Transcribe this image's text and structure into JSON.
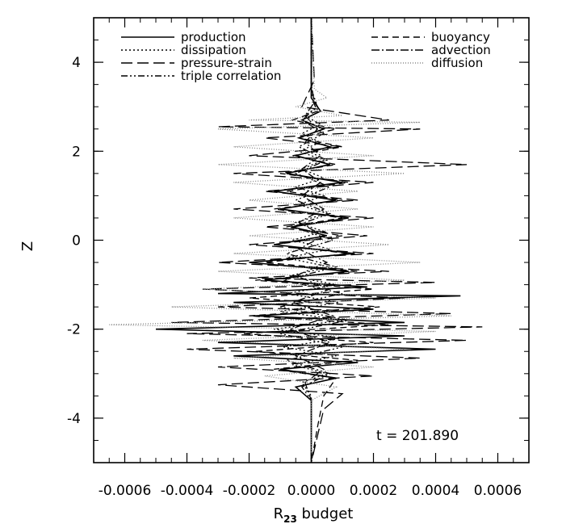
{
  "chart_data": {
    "type": "line",
    "title": "",
    "xlabel": "R",
    "xlabel_sub": "23",
    "xlabel_suffix": " budget",
    "ylabel": "Z",
    "xlim": [
      -0.0007,
      0.0007
    ],
    "ylim": [
      -5,
      5
    ],
    "x_ticks": [
      -0.0006,
      -0.0004,
      -0.0002,
      0.0,
      0.0002,
      0.0004,
      0.0006
    ],
    "x_tick_labels": [
      "-0.0006",
      "-0.0004",
      "-0.0002",
      "0.0000",
      "0.0002",
      "0.0004",
      "0.0006"
    ],
    "y_ticks": [
      -4,
      -2,
      0,
      2,
      4
    ],
    "y_tick_labels": [
      "-4",
      "-2",
      "0",
      "2",
      "4"
    ],
    "grid": false,
    "annotation": "t = 201.890",
    "legend_placement": "top",
    "legend_left": [
      "production",
      "dissipation",
      "pressure-strain",
      "triple correlation"
    ],
    "legend_right": [
      "buoyancy",
      "advection",
      "diffusion"
    ],
    "series": [
      {
        "name": "production",
        "dash": "solid",
        "color": "#000000",
        "points": [
          [
            0.0,
            5
          ],
          [
            0.0,
            3.2
          ],
          [
            3e-05,
            2.9
          ],
          [
            -3e-05,
            2.7
          ],
          [
            4e-05,
            2.5
          ],
          [
            -4e-05,
            2.3
          ],
          [
            6e-05,
            2.1
          ],
          [
            -5e-05,
            1.9
          ],
          [
            6e-05,
            1.7
          ],
          [
            -8e-05,
            1.5
          ],
          [
            0.0001,
            1.3
          ],
          [
            -0.00012,
            1.1
          ],
          [
            8e-05,
            0.9
          ],
          [
            -0.0001,
            0.7
          ],
          [
            0.00012,
            0.5
          ],
          [
            -6e-05,
            0.3
          ],
          [
            5e-05,
            0.1
          ],
          [
            -0.00012,
            -0.1
          ],
          [
            0.00014,
            -0.3
          ],
          [
            -0.0002,
            -0.5
          ],
          [
            0.00012,
            -0.7
          ],
          [
            -0.00015,
            -0.9
          ],
          [
            0.00018,
            -1.05
          ],
          [
            -0.0003,
            -1.2
          ],
          [
            0.00048,
            -1.25
          ],
          [
            -0.00025,
            -1.4
          ],
          [
            0.0002,
            -1.55
          ],
          [
            -0.00018,
            -1.7
          ],
          [
            0.0003,
            -1.85
          ],
          [
            -0.0005,
            -2.0
          ],
          [
            0.0003,
            -2.15
          ],
          [
            -0.0003,
            -2.3
          ],
          [
            0.0004,
            -2.45
          ],
          [
            -0.00025,
            -2.6
          ],
          [
            0.00015,
            -2.75
          ],
          [
            -0.0001,
            -2.9
          ],
          [
            8e-05,
            -3.1
          ],
          [
            -5e-05,
            -3.3
          ],
          [
            0.0,
            -3.6
          ],
          [
            0.0,
            -5
          ]
        ]
      },
      {
        "name": "dissipation",
        "dash": "2,3",
        "color": "#000000",
        "points": [
          [
            0.0,
            5
          ],
          [
            0.0,
            3.4
          ],
          [
            2e-05,
            3.0
          ],
          [
            -2e-05,
            2.8
          ],
          [
            3e-05,
            2.6
          ],
          [
            -3e-05,
            2.4
          ],
          [
            3e-05,
            2.2
          ],
          [
            -4e-05,
            2.0
          ],
          [
            4e-05,
            1.8
          ],
          [
            -3e-05,
            1.6
          ],
          [
            4e-05,
            1.4
          ],
          [
            -5e-05,
            1.2
          ],
          [
            4e-05,
            1.0
          ],
          [
            -4e-05,
            0.8
          ],
          [
            5e-05,
            0.6
          ],
          [
            -5e-05,
            0.4
          ],
          [
            4e-05,
            0.2
          ],
          [
            -6e-05,
            0.0
          ],
          [
            6e-05,
            -0.2
          ],
          [
            -8e-05,
            -0.4
          ],
          [
            6e-05,
            -0.6
          ],
          [
            -7e-05,
            -0.8
          ],
          [
            8e-05,
            -1.0
          ],
          [
            -8e-05,
            -1.2
          ],
          [
            9e-05,
            -1.4
          ],
          [
            -0.0001,
            -1.6
          ],
          [
            0.0001,
            -1.8
          ],
          [
            -0.00012,
            -2.0
          ],
          [
            0.0001,
            -2.2
          ],
          [
            -9e-05,
            -2.4
          ],
          [
            8e-05,
            -2.6
          ],
          [
            -6e-05,
            -2.8
          ],
          [
            5e-05,
            -3.0
          ],
          [
            -3e-05,
            -3.2
          ],
          [
            0.0,
            -3.5
          ],
          [
            0.0,
            -5
          ]
        ]
      },
      {
        "name": "pressure-strain",
        "dash": "14,6",
        "color": "#000000",
        "points": [
          [
            0.0,
            5
          ],
          [
            1e-05,
            3.6
          ],
          [
            -3e-05,
            3.0
          ],
          [
            0.00025,
            2.7
          ],
          [
            -0.0003,
            2.55
          ],
          [
            0.00035,
            2.5
          ],
          [
            -0.00015,
            2.3
          ],
          [
            0.0001,
            2.1
          ],
          [
            -0.0002,
            1.9
          ],
          [
            0.0005,
            1.7
          ],
          [
            -0.00025,
            1.5
          ],
          [
            0.0002,
            1.3
          ],
          [
            -0.00015,
            1.1
          ],
          [
            0.00015,
            0.9
          ],
          [
            -0.00025,
            0.7
          ],
          [
            0.0002,
            0.5
          ],
          [
            -0.00015,
            0.3
          ],
          [
            0.00018,
            0.1
          ],
          [
            -0.0002,
            -0.1
          ],
          [
            0.0002,
            -0.3
          ],
          [
            -0.0003,
            -0.5
          ],
          [
            0.00025,
            -0.7
          ],
          [
            -0.0002,
            -0.85
          ],
          [
            0.0004,
            -0.95
          ],
          [
            -0.00035,
            -1.1
          ],
          [
            0.0003,
            -1.3
          ],
          [
            -0.0003,
            -1.5
          ],
          [
            0.00045,
            -1.65
          ],
          [
            -0.00045,
            -1.85
          ],
          [
            0.00055,
            -1.95
          ],
          [
            -0.0004,
            -2.1
          ],
          [
            0.0005,
            -2.25
          ],
          [
            -0.0004,
            -2.45
          ],
          [
            0.00035,
            -2.65
          ],
          [
            -0.0003,
            -2.85
          ],
          [
            0.0002,
            -3.05
          ],
          [
            -0.0003,
            -3.25
          ],
          [
            0.0001,
            -3.45
          ],
          [
            4e-05,
            -3.8
          ],
          [
            2e-05,
            -4.4
          ],
          [
            0.0,
            -5
          ]
        ]
      },
      {
        "name": "triple correlation",
        "dash": "8,3,2,3,2,3",
        "color": "#000000",
        "points": [
          [
            0.0,
            5
          ],
          [
            0.0,
            3.3
          ],
          [
            2e-05,
            3.0
          ],
          [
            -3e-05,
            2.7
          ],
          [
            4e-05,
            2.4
          ],
          [
            -4e-05,
            2.1
          ],
          [
            5e-05,
            1.8
          ],
          [
            -5e-05,
            1.5
          ],
          [
            6e-05,
            1.2
          ],
          [
            -5e-05,
            0.9
          ],
          [
            6e-05,
            0.6
          ],
          [
            -6e-05,
            0.3
          ],
          [
            7e-05,
            0.0
          ],
          [
            -8e-05,
            -0.3
          ],
          [
            8e-05,
            -0.6
          ],
          [
            -9e-05,
            -0.9
          ],
          [
            0.0001,
            -1.2
          ],
          [
            -0.0001,
            -1.5
          ],
          [
            0.00012,
            -1.8
          ],
          [
            -0.0001,
            -2.1
          ],
          [
            0.0001,
            -2.4
          ],
          [
            -8e-05,
            -2.7
          ],
          [
            6e-05,
            -3.0
          ],
          [
            -3e-05,
            -3.3
          ],
          [
            0.0,
            -3.6
          ],
          [
            0.0,
            -5
          ]
        ]
      },
      {
        "name": "buoyancy",
        "dash": "8,5",
        "color": "#000000",
        "points": [
          [
            0.0,
            5
          ],
          [
            0.0,
            3.2
          ],
          [
            2e-05,
            2.9
          ],
          [
            -6e-05,
            2.7
          ],
          [
            8e-05,
            2.5
          ],
          [
            -4e-05,
            2.3
          ],
          [
            0.0001,
            2.1
          ],
          [
            -6e-05,
            1.9
          ],
          [
            8e-05,
            1.7
          ],
          [
            -0.0001,
            1.5
          ],
          [
            0.00012,
            1.3
          ],
          [
            -8e-05,
            1.1
          ],
          [
            0.0001,
            0.9
          ],
          [
            -0.00012,
            0.7
          ],
          [
            0.0001,
            0.5
          ],
          [
            -8e-05,
            0.3
          ],
          [
            0.0001,
            0.1
          ],
          [
            -0.00012,
            -0.1
          ],
          [
            0.00012,
            -0.3
          ],
          [
            -0.00015,
            -0.5
          ],
          [
            0.00015,
            -0.7
          ],
          [
            -0.00018,
            -0.9
          ],
          [
            0.0002,
            -1.1
          ],
          [
            -0.0002,
            -1.3
          ],
          [
            0.00022,
            -1.5
          ],
          [
            -0.0002,
            -1.7
          ],
          [
            0.00025,
            -1.9
          ],
          [
            -0.00022,
            -2.1
          ],
          [
            0.0002,
            -2.3
          ],
          [
            -0.00018,
            -2.5
          ],
          [
            0.00015,
            -2.7
          ],
          [
            -0.00012,
            -2.9
          ],
          [
            8e-05,
            -3.1
          ],
          [
            4e-05,
            -3.5
          ],
          [
            2e-05,
            -4.2
          ],
          [
            0.0,
            -5
          ]
        ]
      },
      {
        "name": "advection",
        "dash": "10,3,2,3",
        "color": "#000000",
        "points": [
          [
            0.0,
            5
          ],
          [
            0.0,
            3.5
          ],
          [
            1e-05,
            3.1
          ],
          [
            -2e-05,
            2.8
          ],
          [
            2e-05,
            2.5
          ],
          [
            -2e-05,
            2.2
          ],
          [
            3e-05,
            1.9
          ],
          [
            -3e-05,
            1.6
          ],
          [
            3e-05,
            1.3
          ],
          [
            -3e-05,
            1.0
          ],
          [
            4e-05,
            0.7
          ],
          [
            -4e-05,
            0.4
          ],
          [
            4e-05,
            0.1
          ],
          [
            -4e-05,
            -0.2
          ],
          [
            5e-05,
            -0.5
          ],
          [
            -5e-05,
            -0.8
          ],
          [
            6e-05,
            -1.1
          ],
          [
            -6e-05,
            -1.4
          ],
          [
            7e-05,
            -1.7
          ],
          [
            -7e-05,
            -2.0
          ],
          [
            6e-05,
            -2.3
          ],
          [
            -5e-05,
            -2.6
          ],
          [
            4e-05,
            -2.9
          ],
          [
            -2e-05,
            -3.2
          ],
          [
            0.0,
            -3.6
          ],
          [
            0.0,
            -5
          ]
        ]
      },
      {
        "name": "diffusion",
        "dash": "1,2",
        "color": "#888888",
        "points": [
          [
            0.0,
            5
          ],
          [
            1e-05,
            3.4
          ],
          [
            5e-05,
            3.2
          ],
          [
            -5e-05,
            3.0
          ],
          [
            0.0001,
            2.8
          ],
          [
            -0.0002,
            2.7
          ],
          [
            0.00035,
            2.65
          ],
          [
            -0.0003,
            2.5
          ],
          [
            0.0002,
            2.3
          ],
          [
            -0.00025,
            2.1
          ],
          [
            0.0002,
            1.9
          ],
          [
            -0.0003,
            1.7
          ],
          [
            0.0003,
            1.5
          ],
          [
            -0.00025,
            1.3
          ],
          [
            0.00015,
            1.1
          ],
          [
            -0.0002,
            0.9
          ],
          [
            0.00015,
            0.7
          ],
          [
            -0.00025,
            0.5
          ],
          [
            0.0002,
            0.3
          ],
          [
            -0.0002,
            0.1
          ],
          [
            0.00025,
            -0.1
          ],
          [
            -0.00025,
            -0.3
          ],
          [
            0.00035,
            -0.5
          ],
          [
            -0.0003,
            -0.7
          ],
          [
            0.0003,
            -0.9
          ],
          [
            -0.00035,
            -1.1
          ],
          [
            0.0004,
            -1.3
          ],
          [
            -0.00045,
            -1.5
          ],
          [
            0.00045,
            -1.7
          ],
          [
            -0.00065,
            -1.9
          ],
          [
            0.0004,
            -2.05
          ],
          [
            -0.00035,
            -2.25
          ],
          [
            0.0003,
            -2.45
          ],
          [
            -0.00025,
            -2.65
          ],
          [
            0.0002,
            -2.85
          ],
          [
            -0.00015,
            -3.05
          ],
          [
            8e-05,
            -3.3
          ],
          [
            0.0,
            -3.6
          ],
          [
            0.0,
            -5
          ]
        ]
      }
    ]
  }
}
